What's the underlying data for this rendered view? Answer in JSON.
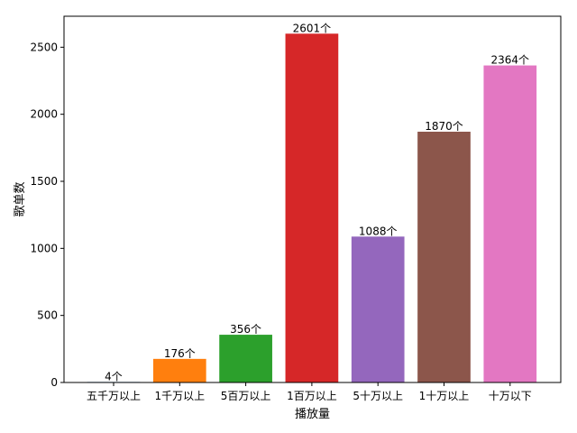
{
  "chart_data": {
    "type": "bar",
    "title": "",
    "xlabel": "播放量",
    "ylabel": "歌单数",
    "categories": [
      "五千万以上",
      "1千万以上",
      "5百万以上",
      "1百万以上",
      "5十万以上",
      "1十万以上",
      "十万以下"
    ],
    "values": [
      4,
      176,
      356,
      2601,
      1088,
      1870,
      2364
    ],
    "value_suffix": "个",
    "colors": [
      "#1f77b4",
      "#ff7f0e",
      "#2ca02c",
      "#d62728",
      "#9467bd",
      "#8c564b",
      "#e377c2"
    ],
    "ylim": [
      0,
      2731
    ],
    "yticks": [
      0,
      500,
      1000,
      1500,
      2000,
      2500
    ],
    "grid": false,
    "legend": "none"
  }
}
